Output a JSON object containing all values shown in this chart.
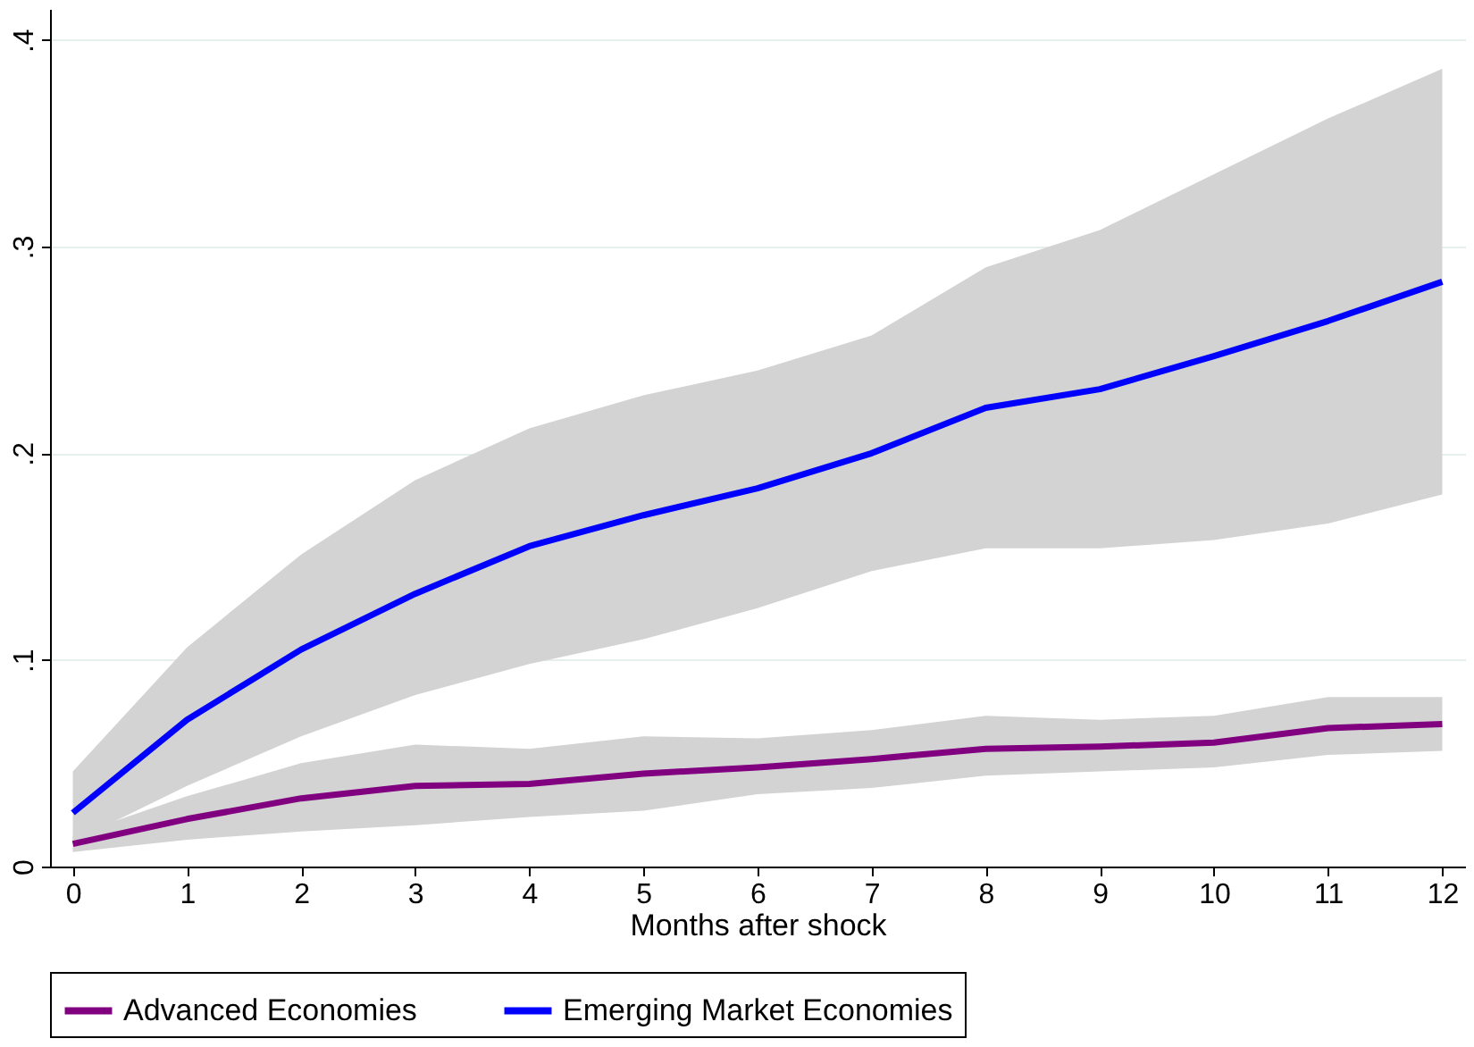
{
  "chart_data": {
    "type": "line",
    "xlabel": "Months after shock",
    "x": [
      0,
      1,
      2,
      3,
      4,
      5,
      6,
      7,
      8,
      9,
      10,
      11,
      12
    ],
    "xlim": [
      -0.2,
      12.2
    ],
    "xticks": [
      0,
      1,
      2,
      3,
      4,
      5,
      6,
      7,
      8,
      9,
      10,
      11,
      12
    ],
    "ylim": [
      0,
      0.415
    ],
    "yticks": [
      0,
      {
        "value": 0.1,
        "label": ".1"
      },
      {
        "value": 0.2,
        "label": ".2"
      },
      {
        "value": 0.3,
        "label": ".3"
      },
      {
        "value": 0.4,
        "label": ".4"
      }
    ],
    "grid": "y",
    "legend": "bottom",
    "line_style": "solid",
    "marker": "none",
    "series": [
      {
        "name": "Advanced Economies",
        "color": "#800080",
        "values": [
          0.011,
          0.023,
          0.033,
          0.039,
          0.04,
          0.045,
          0.048,
          0.052,
          0.057,
          0.058,
          0.06,
          0.067,
          0.069
        ],
        "lower": [
          0.007,
          0.013,
          0.017,
          0.02,
          0.024,
          0.027,
          0.035,
          0.038,
          0.044,
          0.046,
          0.048,
          0.054,
          0.056
        ],
        "upper": [
          0.015,
          0.034,
          0.05,
          0.059,
          0.057,
          0.063,
          0.062,
          0.066,
          0.073,
          0.071,
          0.073,
          0.082,
          0.082
        ]
      },
      {
        "name": "Emerging Market Economies",
        "color": "#0000ff",
        "values": [
          0.026,
          0.071,
          0.105,
          0.132,
          0.155,
          0.17,
          0.183,
          0.2,
          0.222,
          0.231,
          0.247,
          0.264,
          0.283
        ],
        "lower": [
          0.012,
          0.039,
          0.063,
          0.083,
          0.098,
          0.11,
          0.125,
          0.143,
          0.154,
          0.154,
          0.158,
          0.166,
          0.18
        ],
        "upper": [
          0.046,
          0.106,
          0.151,
          0.187,
          0.212,
          0.228,
          0.24,
          0.257,
          0.29,
          0.308,
          0.335,
          0.362,
          0.386
        ]
      }
    ]
  }
}
